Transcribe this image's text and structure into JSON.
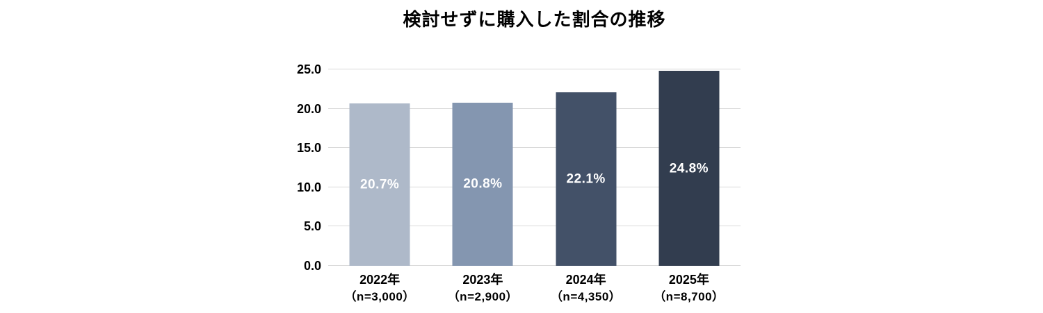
{
  "chart_data": {
    "type": "bar",
    "title": "検討せずに購入した割合の推移",
    "categories": [
      "2022年",
      "2023年",
      "2024年",
      "2025年"
    ],
    "sample_labels": [
      "（n=3,000）",
      "（n=2,900）",
      "（n=4,350）",
      "（n=8,700）"
    ],
    "values": [
      20.7,
      20.8,
      22.1,
      24.8
    ],
    "value_labels": [
      "20.7%",
      "20.8%",
      "22.1%",
      "24.8%"
    ],
    "bar_colors": [
      "#AEB9C9",
      "#8496B0",
      "#435168",
      "#323D4F"
    ],
    "y_ticks": [
      25.0,
      20.0,
      15.0,
      10.0,
      5.0,
      0.0
    ],
    "y_tick_labels": [
      "25.0",
      "20.0",
      "15.0",
      "10.0",
      "5.0",
      "0.0"
    ],
    "ylim": [
      0,
      25
    ],
    "grid": true,
    "legend": "none",
    "colors": {
      "gridline": "#D9D9D9",
      "value_label": "#FFFFFF",
      "text": "#000000",
      "background": "#FFFFFF"
    }
  }
}
